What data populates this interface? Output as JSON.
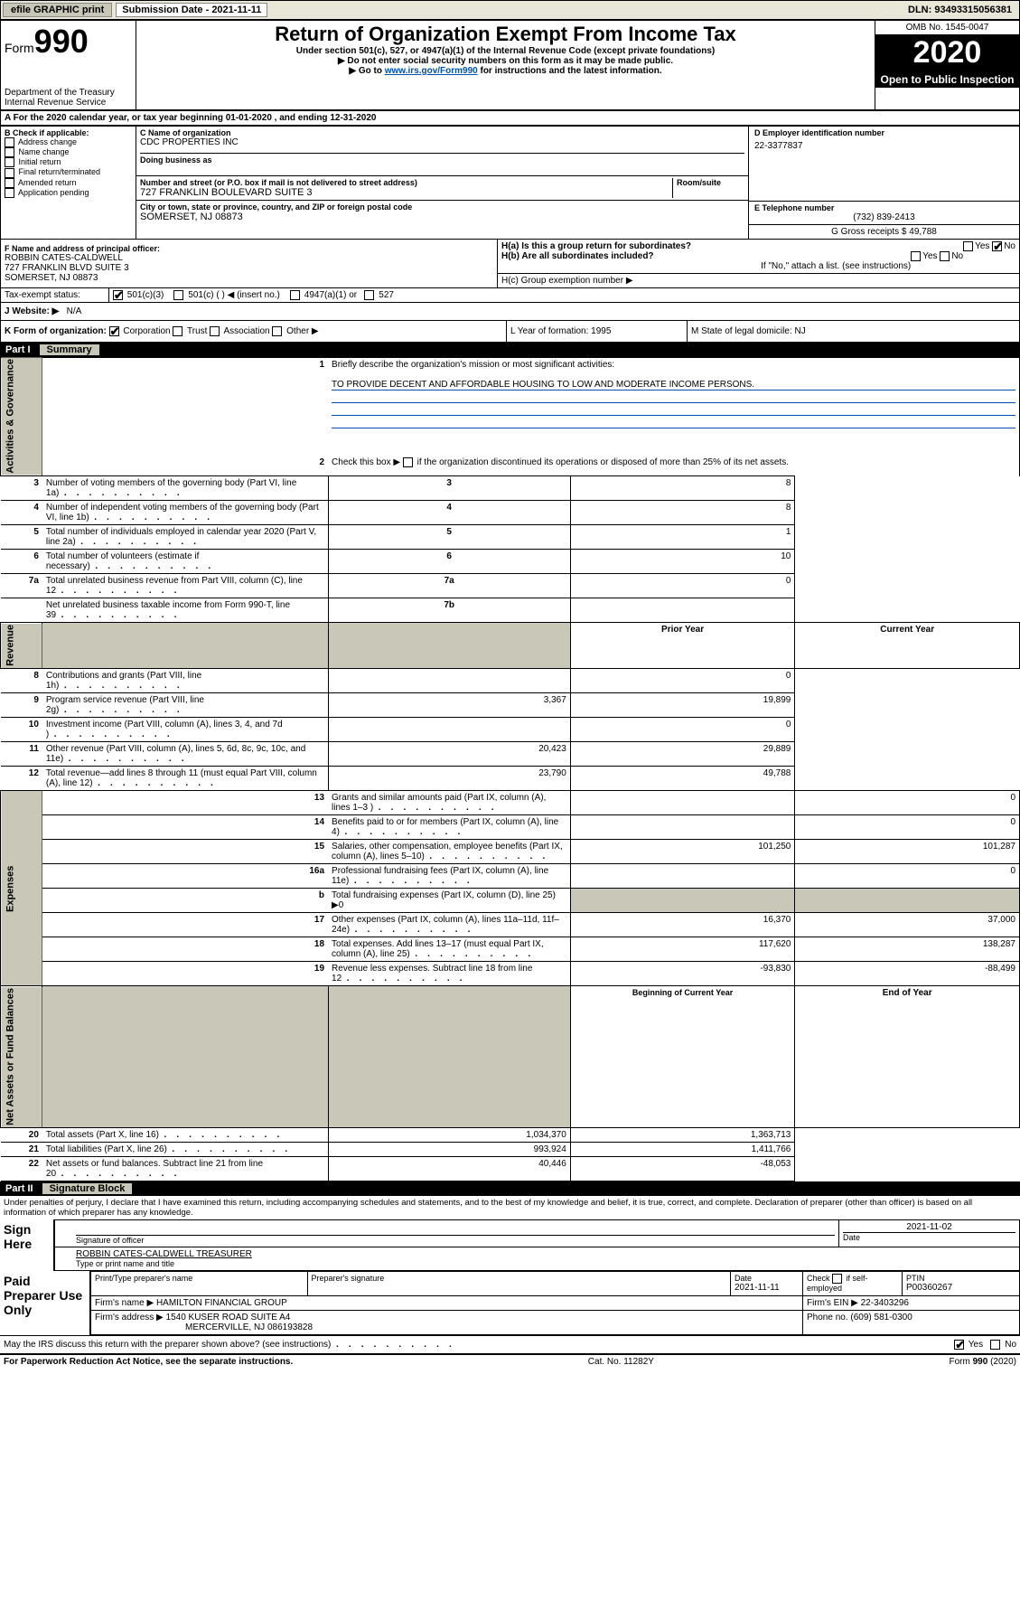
{
  "header": {
    "efile": "efile GRAPHIC print",
    "submission_label": "Submission Date - 2021-11-11",
    "dln": "DLN: 93493315056381"
  },
  "top": {
    "form_prefix": "Form",
    "form_num": "990",
    "title": "Return of Organization Exempt From Income Tax",
    "sub1": "Under section 501(c), 527, or 4947(a)(1) of the Internal Revenue Code (except private foundations)",
    "sub2_prefix": "▶ Do not enter social security numbers on this form as it may be made public.",
    "sub3_prefix": "▶ Go to ",
    "sub3_link": "www.irs.gov/Form990",
    "sub3_suffix": " for instructions and the latest information.",
    "dept1": "Department of the Treasury",
    "dept2": "Internal Revenue Service",
    "omb": "OMB No. 1545-0047",
    "year": "2020",
    "open": "Open to Public Inspection"
  },
  "period": {
    "label_a": "A For the 2020 calendar year, or tax year beginning 01-01-2020     , and ending 12-31-2020"
  },
  "b": {
    "header": "B Check if applicable:",
    "items": [
      "Address change",
      "Name change",
      "Initial return",
      "Final return/terminated",
      "Amended return",
      "Application pending"
    ]
  },
  "c": {
    "name_label": "C Name of organization",
    "name": "CDC PROPERTIES INC",
    "dba_label": "Doing business as",
    "dba": "",
    "street_label": "Number and street (or P.O. box if mail is not delivered to street address)",
    "room_label": "Room/suite",
    "street": "727 FRANKLIN BOULEVARD SUITE 3",
    "city_label": "City or town, state or province, country, and ZIP or foreign postal code",
    "city": "SOMERSET, NJ  08873"
  },
  "d": {
    "label": "D Employer identification number",
    "value": "22-3377837"
  },
  "e": {
    "label": "E Telephone number",
    "value": "(732) 839-2413"
  },
  "g": {
    "label": "G Gross receipts $ 49,788"
  },
  "f": {
    "label": "F Name and address of principal officer:",
    "l1": "ROBBIN CATES-CALDWELL",
    "l2": "727 FRANKLIN BLVD SUITE 3",
    "l3": "SOMERSET, NJ  08873"
  },
  "h": {
    "a": "H(a)  Is this a group return for subordinates?",
    "b": "H(b)  Are all subordinates included?",
    "note": "If \"No,\" attach a list. (see instructions)",
    "c": "H(c)  Group exemption number ▶"
  },
  "i": {
    "label": "Tax-exempt status:",
    "opt1": "501(c)(3)",
    "opt2": "501(c) (   ) ◀ (insert no.)",
    "opt3": "4947(a)(1) or",
    "opt4": "527"
  },
  "j": {
    "label": "J   Website: ▶",
    "value": "N/A"
  },
  "k": {
    "label": "K Form of organization:",
    "o1": "Corporation",
    "o2": "Trust",
    "o3": "Association",
    "o4": "Other ▶"
  },
  "l": {
    "label": "L Year of formation: 1995"
  },
  "m": {
    "label": "M State of legal domicile: NJ"
  },
  "part1": {
    "title_pt": "Part I",
    "title_nm": "Summary",
    "l1": "Briefly describe the organization's mission or most significant activities:",
    "mission": "TO PROVIDE DECENT AND AFFORDABLE HOUSING TO LOW AND MODERATE INCOME PERSONS.",
    "l2": "Check this box ▶  if the organization discontinued its operations or disposed of more than 25% of its net assets.",
    "rows_top": [
      {
        "n": "3",
        "d": "Number of voting members of the governing body (Part VI, line 1a)",
        "box": "3",
        "v": "8"
      },
      {
        "n": "4",
        "d": "Number of independent voting members of the governing body (Part VI, line 1b)",
        "box": "4",
        "v": "8"
      },
      {
        "n": "5",
        "d": "Total number of individuals employed in calendar year 2020 (Part V, line 2a)",
        "box": "5",
        "v": "1"
      },
      {
        "n": "6",
        "d": "Total number of volunteers (estimate if necessary)",
        "box": "6",
        "v": "10"
      },
      {
        "n": "7a",
        "d": "Total unrelated business revenue from Part VIII, column (C), line 12",
        "box": "7a",
        "v": "0"
      },
      {
        "n": "",
        "d": "Net unrelated business taxable income from Form 990-T, line 39",
        "box": "7b",
        "v": ""
      }
    ],
    "header_prior": "Prior Year",
    "header_current": "Current Year",
    "rows_rev": [
      {
        "n": "8",
        "d": "Contributions and grants (Part VIII, line 1h)",
        "p": "",
        "c": "0"
      },
      {
        "n": "9",
        "d": "Program service revenue (Part VIII, line 2g)",
        "p": "3,367",
        "c": "19,899"
      },
      {
        "n": "10",
        "d": "Investment income (Part VIII, column (A), lines 3, 4, and 7d )",
        "p": "",
        "c": "0"
      },
      {
        "n": "11",
        "d": "Other revenue (Part VIII, column (A), lines 5, 6d, 8c, 9c, 10c, and 11e)",
        "p": "20,423",
        "c": "29,889"
      },
      {
        "n": "12",
        "d": "Total revenue—add lines 8 through 11 (must equal Part VIII, column (A), line 12)",
        "p": "23,790",
        "c": "49,788"
      }
    ],
    "rows_exp": [
      {
        "n": "13",
        "d": "Grants and similar amounts paid (Part IX, column (A), lines 1–3 )",
        "p": "",
        "c": "0"
      },
      {
        "n": "14",
        "d": "Benefits paid to or for members (Part IX, column (A), line 4)",
        "p": "",
        "c": "0"
      },
      {
        "n": "15",
        "d": "Salaries, other compensation, employee benefits (Part IX, column (A), lines 5–10)",
        "p": "101,250",
        "c": "101,287"
      },
      {
        "n": "16a",
        "d": "Professional fundraising fees (Part IX, column (A), line 11e)",
        "p": "",
        "c": "0"
      },
      {
        "n": "b",
        "d": "Total fundraising expenses (Part IX, column (D), line 25) ▶0",
        "p": "",
        "c": "",
        "grey": true
      },
      {
        "n": "17",
        "d": "Other expenses (Part IX, column (A), lines 11a–11d, 11f–24e)",
        "p": "16,370",
        "c": "37,000"
      },
      {
        "n": "18",
        "d": "Total expenses. Add lines 13–17 (must equal Part IX, column (A), line 25)",
        "p": "117,620",
        "c": "138,287"
      },
      {
        "n": "19",
        "d": "Revenue less expenses. Subtract line 18 from line 12",
        "p": "-93,830",
        "c": "-88,499"
      }
    ],
    "header_begin": "Beginning of Current Year",
    "header_end": "End of Year",
    "rows_net": [
      {
        "n": "20",
        "d": "Total assets (Part X, line 16)",
        "p": "1,034,370",
        "c": "1,363,713"
      },
      {
        "n": "21",
        "d": "Total liabilities (Part X, line 26)",
        "p": "993,924",
        "c": "1,411,766"
      },
      {
        "n": "22",
        "d": "Net assets or fund balances. Subtract line 21 from line 20",
        "p": "40,446",
        "c": "-48,053"
      }
    ],
    "vside1": "Activities & Governance",
    "vside2": "Revenue",
    "vside3": "Expenses",
    "vside4": "Net Assets or Fund Balances"
  },
  "part2": {
    "title_pt": "Part II",
    "title_nm": "Signature Block",
    "under_pen": "Under penalties of perjury, I declare that I have examined this return, including accompanying schedules and statements, and to the best of my knowledge and belief, it is true, correct, and complete. Declaration of preparer (other than officer) is based on all information of which preparer has any knowledge."
  },
  "sign": {
    "label": "Sign Here",
    "sig_officer": "Signature of officer",
    "date": "2021-11-02",
    "date_label": "Date",
    "name_printed": "ROBBIN CATES-CALDWELL TREASURER",
    "name_label": "Type or print name and title"
  },
  "paid": {
    "label": "Paid Preparer Use Only",
    "h1": "Print/Type preparer's name",
    "h2": "Preparer's signature",
    "h3": "Date",
    "h3v": "2021-11-11",
    "h4": "Check      if self-employed",
    "h5": "PTIN",
    "h5v": "P00360267",
    "firm_name_l": "Firm's name     ▶",
    "firm_name": "HAMILTON FINANCIAL GROUP",
    "firm_ein_l": "Firm's EIN ▶",
    "firm_ein": "22-3403296",
    "firm_addr_l": "Firm's address ▶",
    "firm_addr1": "1540 KUSER ROAD SUITE A4",
    "firm_addr2": "MERCERVILLE, NJ  086193828",
    "phone_l": "Phone no.",
    "phone": "(609) 581-0300"
  },
  "discuss": "May the IRS discuss this return with the preparer shown above? (see instructions)",
  "footer": {
    "left": "For Paperwork Reduction Act Notice, see the separate instructions.",
    "mid": "Cat. No. 11282Y",
    "right": "Form 990 (2020)"
  }
}
